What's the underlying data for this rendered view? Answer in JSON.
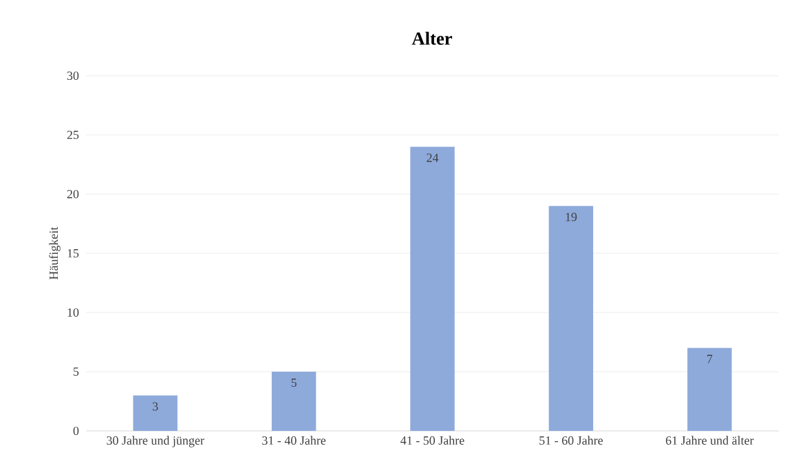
{
  "chart_data": {
    "type": "bar",
    "title": "Alter",
    "ylabel": "Häufigkeit",
    "categories": [
      "30 Jahre und jünger",
      "31 - 40 Jahre",
      "41 - 50 Jahre",
      "51 - 60 Jahre",
      "61 Jahre und älter"
    ],
    "values": [
      3,
      5,
      24,
      19,
      7
    ],
    "color": "#8eaadb",
    "ylim": [
      0,
      30
    ],
    "yticks": [
      0,
      5,
      10,
      15,
      20,
      25,
      30
    ],
    "grid": "y",
    "data_labels": true
  }
}
